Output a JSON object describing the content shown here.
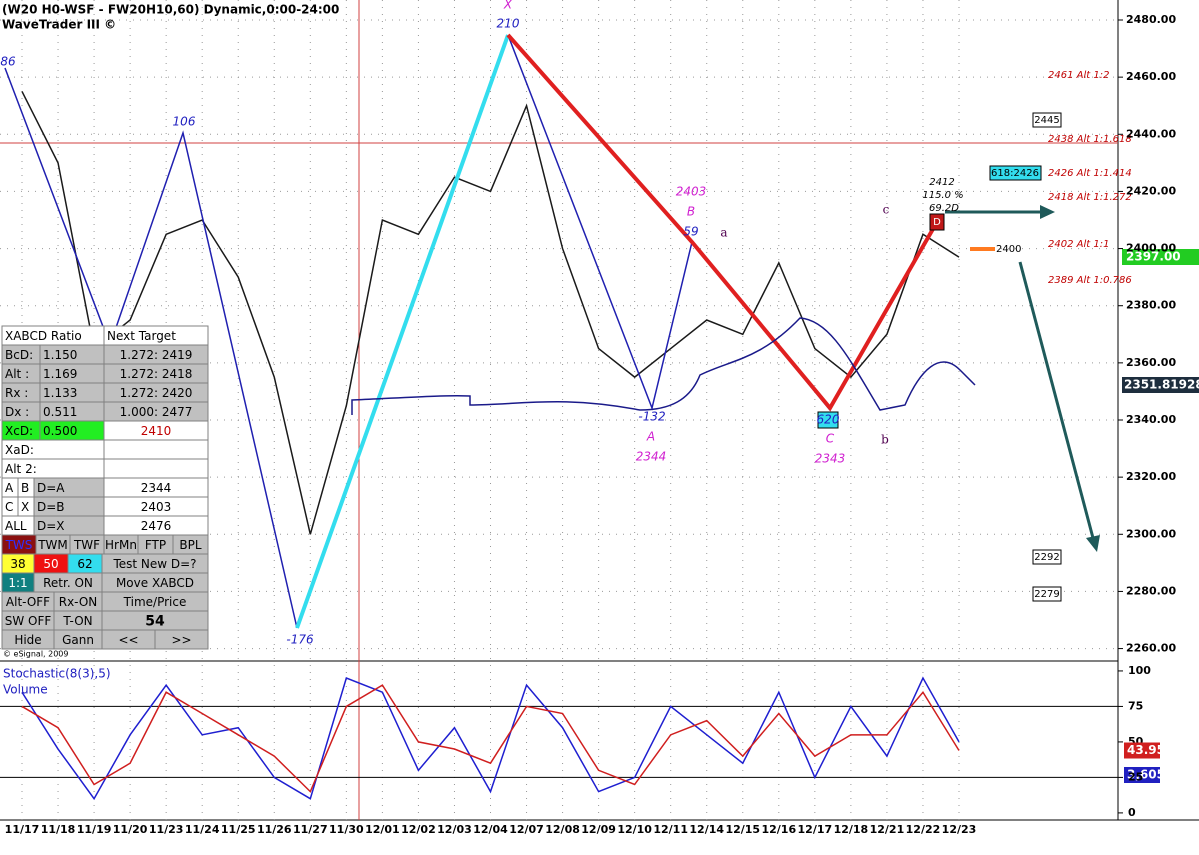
{
  "header": {
    "title": "(W20 H0-WSF - FW20H10,60) Dynamic,0:00-24:00",
    "subtitle": "WaveTrader III ©",
    "copyright": "© eSignal, 2009"
  },
  "chart_data": [
    {
      "type": "line",
      "categories": [
        "11/17",
        "11/18",
        "11/19",
        "11/20",
        "11/23",
        "11/24",
        "11/25",
        "11/26",
        "11/27",
        "11/30",
        "12/01",
        "12/02",
        "12/03",
        "12/04",
        "12/07",
        "12/08",
        "12/09",
        "12/10",
        "12/11",
        "12/14",
        "12/15",
        "12/16",
        "12/17",
        "12/18",
        "12/21",
        "12/22",
        "12/23"
      ],
      "values": [
        2455,
        2430,
        2365,
        2375,
        2405,
        2410,
        2390,
        2355,
        2300,
        2345,
        2410,
        2405,
        2425,
        2420,
        2450,
        2400,
        2365,
        2355,
        2365,
        2375,
        2370,
        2395,
        2365,
        2355,
        2370,
        2405,
        2397
      ],
      "color": "#1a1a1a",
      "ylim": [
        2256,
        2487
      ],
      "yticks": [
        {
          "value": 2260,
          "label": "2260.00"
        },
        {
          "value": 2280,
          "label": "2280.00"
        },
        {
          "value": 2300,
          "label": "2300.00"
        },
        {
          "value": 2320,
          "label": "2320.00"
        },
        {
          "value": 2340,
          "label": "2340.00"
        },
        {
          "value": 2360,
          "label": "2360.00"
        },
        {
          "value": 2380,
          "label": "2380.00"
        },
        {
          "value": 2400,
          "label": "2400.00"
        },
        {
          "value": 2420,
          "label": "2420.00"
        },
        {
          "value": 2440,
          "label": "2440.00"
        },
        {
          "value": 2460,
          "label": "2460.00"
        },
        {
          "value": 2480,
          "label": "2480.00"
        }
      ],
      "grid": true
    },
    {
      "type": "line",
      "title": "Stochastic(8(3),5)",
      "subtitle": "Volume",
      "series": [
        {
          "color": "#1f1fd0",
          "values": [
            85,
            45,
            10,
            55,
            90,
            55,
            60,
            25,
            10,
            95,
            85,
            30,
            60,
            15,
            90,
            60,
            15,
            25,
            75,
            55,
            35,
            85,
            25,
            75,
            40,
            95,
            50
          ]
        },
        {
          "color": "#d01f1f",
          "values": [
            75,
            60,
            20,
            35,
            85,
            70,
            55,
            40,
            15,
            75,
            90,
            50,
            45,
            35,
            75,
            70,
            30,
            20,
            55,
            65,
            40,
            70,
            40,
            55,
            55,
            85,
            43.95
          ]
        }
      ],
      "ylim": [
        -5,
        107
      ],
      "yticks": [
        0,
        25,
        50,
        75,
        100
      ],
      "levels": [
        25,
        75
      ]
    }
  ],
  "annotations": {
    "x": "X",
    "x_count": "210",
    "start": "86",
    "swing1": "106",
    "swing2": "-176",
    "a_count": "-132",
    "a": "A",
    "a_price": "2344",
    "b_price": "2403",
    "b": "B",
    "b_count": "59",
    "small_a": "a",
    "c_count": "620",
    "c": "C",
    "c_price": "2343",
    "small_b": "b",
    "small_c": "c",
    "d_price": "2412",
    "d_pct": "115.0 %",
    "d_time": "69.2D",
    "d": "D"
  },
  "levels": [
    "2461 Alt 1:2",
    "2438 Alt 1:1.618",
    "2426 Alt 1:1.414",
    "2418 Alt 1:1.272",
    "2402 Alt 1:1",
    "2389 Alt 1:0.786"
  ],
  "boxes": [
    "2445",
    "618:2426",
    "2400",
    "2292",
    "2279"
  ],
  "price_tags": [
    "2397.00",
    "2351.81928"
  ],
  "volume_tag": "3,605",
  "panel": {
    "rows": [
      [
        "XABCD Ratio",
        "Next Target"
      ],
      [
        "BcD:",
        "1.150",
        "1.272: 2419"
      ],
      [
        "Alt :",
        "1.169",
        "1.272: 2418"
      ],
      [
        "Rx :",
        "1.133",
        "1.272: 2420"
      ],
      [
        "Dx :",
        "0.511",
        "1.000: 2477"
      ],
      [
        "XcD:",
        "0.500",
        "2410"
      ],
      [
        "XaD:"
      ],
      [
        "Alt 2:"
      ],
      [
        "A",
        "B",
        "D=A",
        "2344"
      ],
      [
        "C",
        "X",
        "D=B",
        "2403"
      ],
      [
        "ALL",
        "D=X",
        "2476"
      ],
      [
        "TWS",
        "TWM",
        "TWF",
        "HrMn",
        "FTP",
        "BPL"
      ],
      [
        "38",
        "50",
        "62",
        "Test New D=?"
      ],
      [
        "1:1",
        "Retr. ON",
        "Move XABCD"
      ],
      [
        "Alt-OFF",
        "Rx-ON",
        "Time/Price"
      ],
      [
        "SW OFF",
        "T-ON",
        "54"
      ],
      [
        "Hide",
        "Gann",
        "<<",
        ">>"
      ]
    ]
  }
}
